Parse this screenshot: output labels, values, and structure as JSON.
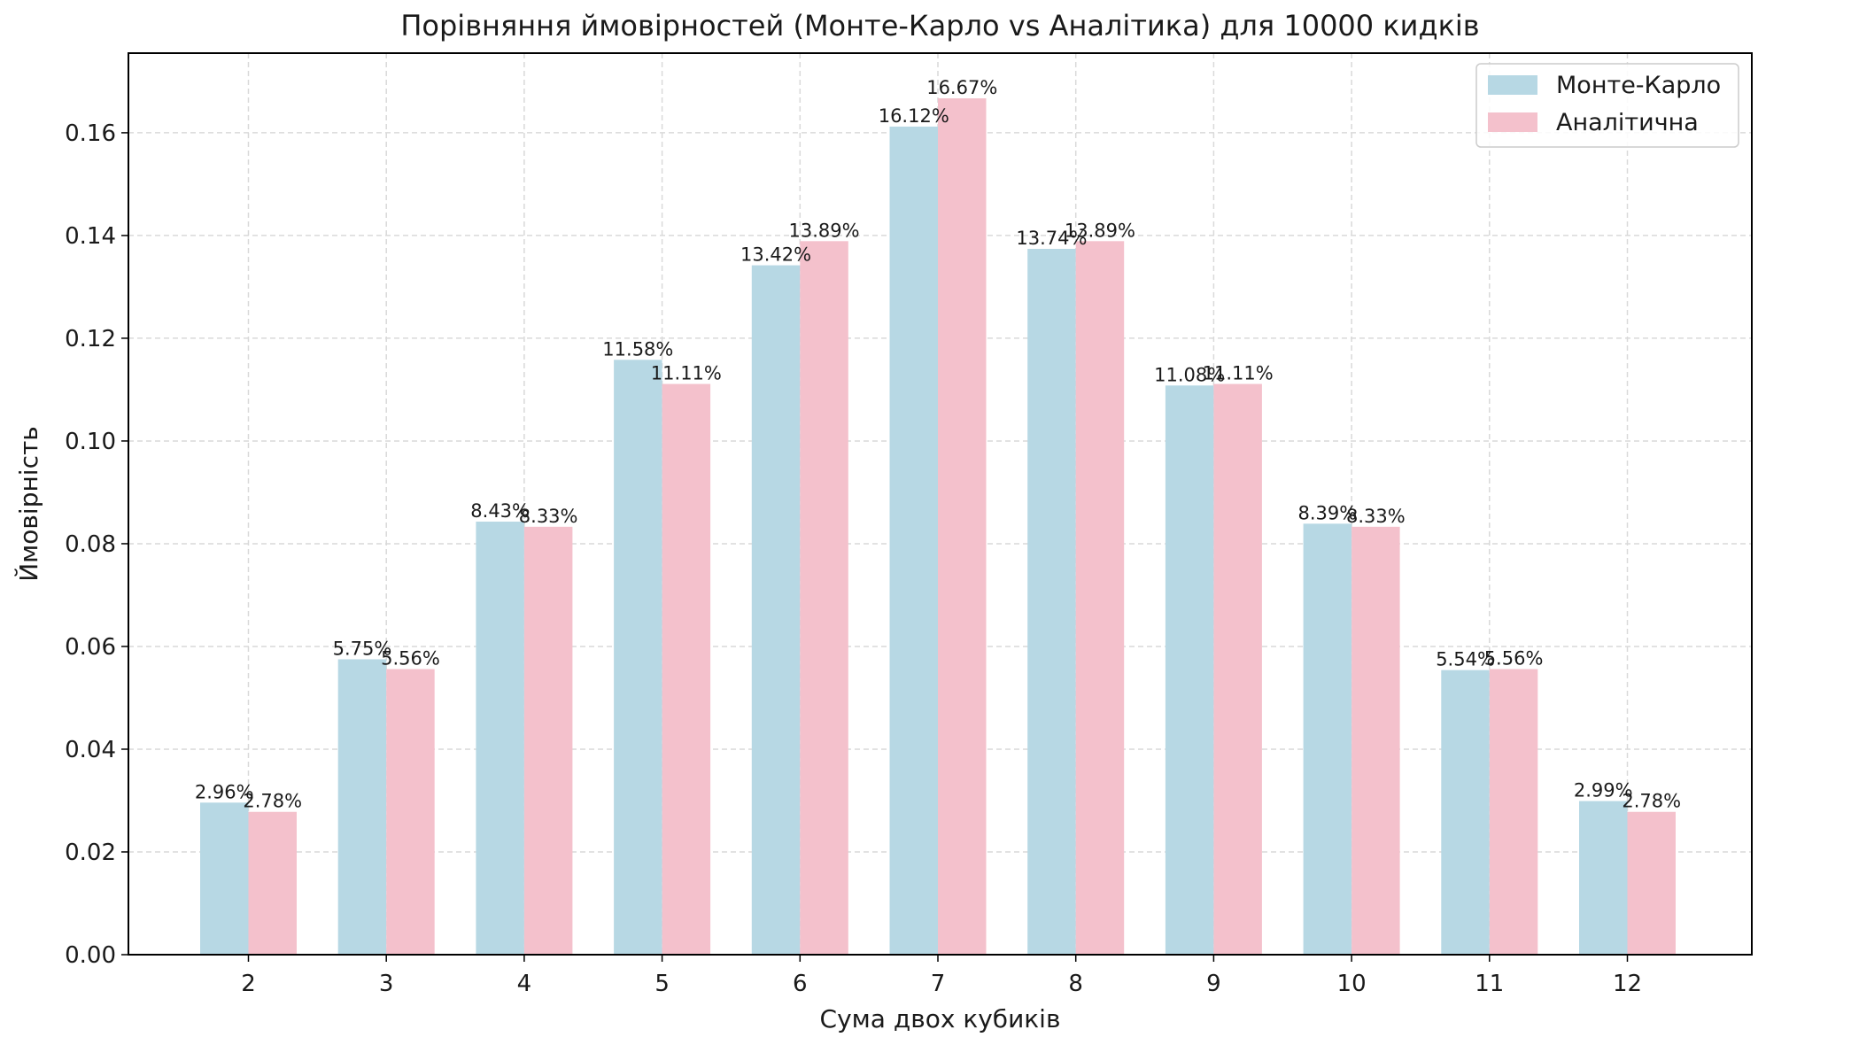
{
  "chart_data": {
    "type": "bar",
    "title": "Порівняння ймовірностей (Монте-Карло vs Аналітика) для 10000 кидків",
    "xlabel": "Сума двох кубиків",
    "ylabel": "Ймовірність",
    "categories": [
      "2",
      "3",
      "4",
      "5",
      "6",
      "7",
      "8",
      "9",
      "10",
      "11",
      "12"
    ],
    "series": [
      {
        "name": "Монте-Карло",
        "color": "#b7d8e4",
        "values": [
          0.0296,
          0.0575,
          0.0843,
          0.1158,
          0.1342,
          0.1612,
          0.1374,
          0.1108,
          0.0839,
          0.0554,
          0.0299
        ],
        "labels": [
          "2.96%",
          "5.75%",
          "8.43%",
          "11.58%",
          "13.42%",
          "16.12%",
          "13.74%",
          "11.08%",
          "8.39%",
          "5.54%",
          "2.99%"
        ]
      },
      {
        "name": "Аналітична",
        "color": "#f4c1cc",
        "values": [
          0.0278,
          0.0556,
          0.0833,
          0.1111,
          0.1389,
          0.1667,
          0.1389,
          0.1111,
          0.0833,
          0.0556,
          0.0278
        ],
        "labels": [
          "2.78%",
          "5.56%",
          "8.33%",
          "11.11%",
          "13.89%",
          "16.67%",
          "13.89%",
          "11.11%",
          "8.33%",
          "5.56%",
          "2.78%"
        ]
      }
    ],
    "ylim": [
      0,
      0.1755
    ],
    "yticks": [
      "0.00",
      "0.02",
      "0.04",
      "0.06",
      "0.08",
      "0.10",
      "0.12",
      "0.14",
      "0.16"
    ],
    "grid": true,
    "legend_position": "top-right"
  }
}
